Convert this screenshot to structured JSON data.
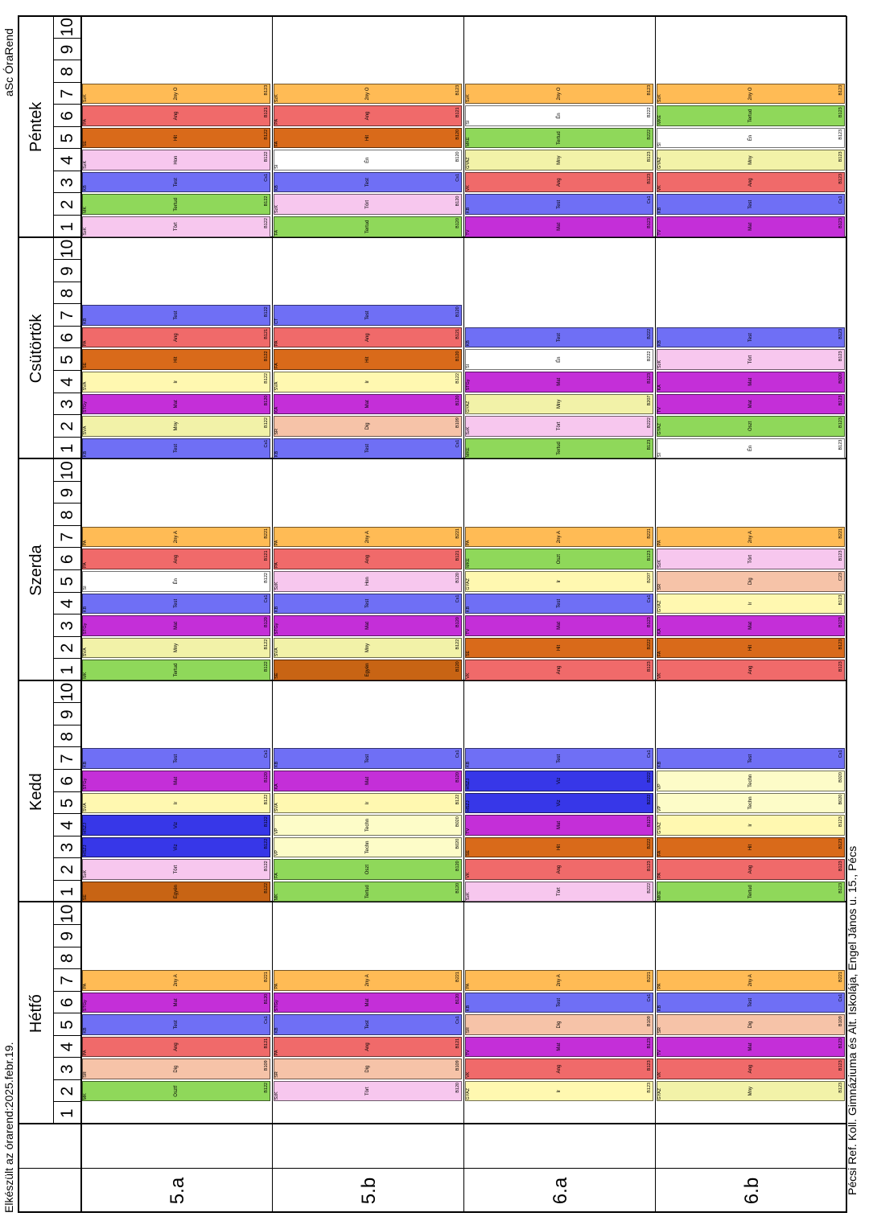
{
  "header": {
    "title": "Pécsi Ref. Koll. Gimnáziuma és Ált. Iskolája, Engel János u. 15., Pécs"
  },
  "footer": {
    "generated": "Elkészült az órarend:2025.febr.19.",
    "brand": "aSc ÓraRend"
  },
  "days": [
    "Hétfő",
    "Kedd",
    "Szerda",
    "Csütörtök",
    "Péntek"
  ],
  "periods": [
    "1",
    "2",
    "3",
    "4",
    "5",
    "6",
    "7",
    "8",
    "9",
    "10"
  ],
  "classes": [
    "5.a",
    "5.b",
    "6.a",
    "6.b"
  ],
  "colors": {
    "Test": "#6f6ff5",
    "Mat": "#c42fd8",
    "Ir": "#fff8b0",
    "Mny": "#f2f2a8",
    "Hit": "#d96a1a",
    "Tört": "#f7c7ee",
    "Tertud": "#8fd85a",
    "Oszt": "#8fd85a",
    "Dig": "#f6c3a8",
    "Egyén": "#c86414",
    "Viz": "#3737e8",
    "Techn": "#fdfcc8",
    "Én": "#ffffff",
    "Hon": "#f7c7ee",
    "Ang": "#f06a6a",
    "Nem": "#45c9f0",
    "2ny": "#ffbb55",
    "Cs": "#8a2020",
    "Dk": "#1414c0",
    "gray": "#cccccc"
  },
  "schedule": {
    "5.a": {
      "Hétfő": [
        null,
        [
          "MK",
          "Osztf",
          "B122"
        ],
        [
          "SR",
          "Dig",
          "B109"
        ],
        [
          "PA",
          "Ang",
          "B121"
        ],
        [
          "KB",
          "Test",
          "Cs1"
        ],
        [
          "STGy",
          "Mat",
          "B120"
        ],
        [
          "PA",
          "2ny A",
          "B221"
        ],
        null,
        null,
        null
      ],
      "Kedd": [
        [
          "SE",
          "Egyén",
          "B122"
        ],
        [
          "SzK",
          "Tört",
          "B122"
        ],
        [
          "HSZJ",
          "Viz",
          "B122"
        ],
        [
          "HSZJ",
          "Viz",
          "B122"
        ],
        [
          "SVÁ",
          "Ir",
          "B122"
        ],
        [
          "STGy",
          "Mat",
          "B120"
        ],
        [
          "KB",
          "Test",
          "Cs1"
        ],
        null,
        null,
        null
      ],
      "Szerda": [
        [
          "MK",
          "Tertud",
          "B122"
        ],
        [
          "SVÁ",
          "Mny",
          "B122"
        ],
        [
          "STGy",
          "Mat",
          "B120"
        ],
        [
          "KB",
          "Test",
          "Cs1"
        ],
        [
          "SI",
          "Én",
          "B122"
        ],
        [
          "PA",
          "Ang",
          "B121"
        ],
        [
          "PA",
          "2ny A",
          "B221"
        ],
        null,
        null,
        null
      ],
      "Csütörtök": [
        [
          "KB",
          "Test",
          "Cs1"
        ],
        [
          "SVÁ",
          "Mny",
          "B122"
        ],
        [
          "STGy",
          "Mat",
          "B120"
        ],
        [
          "SVÁ",
          "Ir",
          "B122"
        ],
        [
          "SE",
          "Hit",
          "B122"
        ],
        [
          "PA",
          "Ang",
          "B121"
        ],
        [
          "KB",
          "Test",
          "B122"
        ],
        null,
        null,
        null
      ],
      "Péntek": [
        [
          "SzK",
          "Tört",
          "B122"
        ],
        [
          "MK",
          "Tertud",
          "B122"
        ],
        [
          "KB",
          "Test",
          "Cs1"
        ],
        [
          "SzK",
          "Hon",
          "B122"
        ],
        [
          "SE",
          "Hit",
          "B122"
        ],
        [
          "PA",
          "Ang",
          "B121"
        ],
        [
          "SzK",
          "2ny O",
          "B123"
        ],
        null,
        null,
        null
      ]
    },
    "5.b": {
      "Hétfő": [
        null,
        [
          "SzK",
          "Tört",
          "B120"
        ],
        [
          "SR",
          "Dig",
          "B109"
        ],
        [
          "PA",
          "Ang",
          "B121"
        ],
        [
          "KB",
          "Test",
          "Cs1"
        ],
        [
          "STGy",
          "Mat",
          "B120"
        ],
        [
          "PA",
          "2ny A",
          "B221"
        ],
        null,
        null,
        null
      ],
      "Kedd": [
        [
          "MK",
          "Tertud",
          "B120"
        ],
        [
          "FA",
          "Oszt",
          "B120"
        ],
        [
          "VP",
          "Techn",
          "B020"
        ],
        [
          "VP",
          "Techn",
          "B020"
        ],
        [
          "SVÁ",
          "Ir",
          "B122"
        ],
        [
          "KA",
          "Mat",
          "B120"
        ],
        [
          "KB",
          "Test",
          "Cs1"
        ],
        null,
        null,
        null
      ],
      "Szerda": [
        [
          "SE",
          "Egyén",
          "B120"
        ],
        [
          "SVÁ",
          "Mny",
          "B122"
        ],
        [
          "STGy",
          "Mat",
          "B120"
        ],
        [
          "KB",
          "Test",
          "Cs1"
        ],
        [
          "SzK",
          "Hon",
          "B120"
        ],
        [
          "PA",
          "Ang",
          "B121"
        ],
        [
          "PA",
          "2ny A",
          "B221"
        ],
        null,
        null,
        null
      ],
      "Csütörtök": [
        [
          "KB",
          "Test",
          "Cs1"
        ],
        [
          "SR",
          "Dig",
          "B109"
        ],
        [
          "KA",
          "Mat",
          "B120"
        ],
        [
          "SVÁ",
          "Ir",
          "B122"
        ],
        [
          "FA",
          "Hit",
          "B120"
        ],
        [
          "PA",
          "Ang",
          "B121"
        ],
        [
          "CT",
          "Test",
          "B120"
        ],
        null,
        null,
        null
      ],
      "Péntek": [
        [
          "FA",
          "Tertud",
          "B120"
        ],
        [
          "SzK",
          "Tört",
          "B120"
        ],
        [
          "KB",
          "Test",
          "Cs1"
        ],
        [
          "SI",
          "Én",
          "B120"
        ],
        [
          "FA",
          "Hit",
          "B120"
        ],
        [
          "PA",
          "Ang",
          "B121"
        ],
        [
          "SzK",
          "2ny O",
          "B123"
        ],
        null,
        null,
        null
      ]
    },
    "6.a": {
      "Hétfő": [
        null,
        [
          "GYAZ",
          "Ir",
          "B123"
        ],
        [
          "VK",
          "Ang",
          "B123"
        ],
        [
          "TV",
          "Mat",
          "B123"
        ],
        [
          "SR",
          "Dig",
          "B109"
        ],
        [
          "KB",
          "Test",
          "Cs1"
        ],
        [
          "PA",
          "2ny A",
          "B221"
        ],
        null,
        null,
        null
      ],
      "Kedd": [
        [
          "SzK",
          "Tört",
          "B222"
        ],
        [
          "VK",
          "Ang",
          "B123"
        ],
        [
          "SE",
          "Hit",
          "B222"
        ],
        [
          "TV",
          "Mat",
          "B123"
        ],
        [
          "HSZJ",
          "Viz",
          "B222"
        ],
        [
          "HSZJ",
          "Viz",
          "B222"
        ],
        [
          "KB",
          "Test",
          "Cs1"
        ],
        null,
        null,
        null
      ],
      "Szerda": [
        [
          "VK",
          "Ang",
          "B123"
        ],
        [
          "SE",
          "Hit",
          "B222"
        ],
        [
          "TV",
          "Mat",
          "B123"
        ],
        [
          "KB",
          "Test",
          "Cs1"
        ],
        [
          "GYAZ",
          "Ir",
          "B207"
        ],
        [
          "MKE",
          "Oszt",
          "B123"
        ],
        [
          "PA",
          "2ny A",
          "B221"
        ],
        null,
        null,
        null
      ],
      "Csütörtök": [
        [
          "MKE",
          "Tertud",
          "B123"
        ],
        [
          "SzK",
          "Tört",
          "B222"
        ],
        [
          "GYAZ",
          "Mny",
          "B207"
        ],
        [
          "STGy",
          "Mat",
          "B123"
        ],
        [
          "SI",
          "Én",
          "B222"
        ],
        [
          "KB",
          "Test",
          "B222"
        ],
        null,
        null,
        null,
        null
      ],
      "Péntek": [
        [
          "TV",
          "Mat",
          "B123"
        ],
        [
          "KB",
          "Test",
          "Cs1"
        ],
        [
          "VK",
          "Ang",
          "B123"
        ],
        [
          "GYAZ",
          "Mny",
          "B123"
        ],
        [
          "MKE",
          "Tertud",
          "B222"
        ],
        [
          "SI",
          "Én",
          "B222"
        ],
        [
          "SzK",
          "2ny O",
          "B123"
        ],
        null,
        null,
        null
      ]
    },
    "6.b": {
      "Hétfő": [
        null,
        [
          "GYAZ",
          "Mny",
          "B123"
        ],
        [
          "VK",
          "Ang",
          "B123"
        ],
        [
          "TV",
          "Mat",
          "B123"
        ],
        [
          "SR",
          "Dig",
          "B109"
        ],
        [
          "KB",
          "Test",
          "Cs1"
        ],
        [
          "PA",
          "2ny A",
          "B221"
        ],
        null,
        null,
        null
      ],
      "Kedd": [
        [
          "MKE",
          "Tertud",
          "B123"
        ],
        [
          "PA",
          "Ang",
          "B123"
        ],
        [
          "FA",
          "Hit",
          "B123"
        ],
        [
          "GYAZ",
          "Ir",
          "B123"
        ],
        [
          "VP",
          "Techn",
          "B020"
        ],
        [
          "VP",
          "Techn",
          "B020"
        ],
        [
          "KB",
          "Test",
          "Cs1"
        ],
        null,
        null,
        null
      ],
      "Szerda": [
        [
          "VK",
          "Ang",
          "B123"
        ],
        [
          "FA",
          "Hit",
          "B123"
        ],
        [
          "KA",
          "Mat",
          "B123"
        ],
        [
          "GYAZ",
          "Ir",
          "B123"
        ],
        [
          "SR",
          "Dig",
          "C23"
        ],
        [
          "SzK",
          "Tört",
          "B123"
        ],
        [
          "PA",
          "2ny A",
          "B221"
        ],
        null,
        null,
        null
      ],
      "Csütörtök": [
        [
          "SI",
          "Én",
          "B123"
        ],
        [
          "GYAZ",
          "Oszt",
          "B123"
        ],
        [
          "TV",
          "Mat",
          "B123"
        ],
        [
          "KA",
          "Mat",
          "B020"
        ],
        [
          "SzK",
          "Tört",
          "B123"
        ],
        [
          "KB",
          "Test",
          "B123"
        ],
        null,
        null,
        null,
        null
      ],
      "Péntek": [
        [
          "TV",
          "Mat",
          "B123"
        ],
        [
          "KB",
          "Test",
          "Cs1"
        ],
        [
          "VK",
          "Ang",
          "B123"
        ],
        [
          "GYAZ",
          "Mny",
          "B123"
        ],
        [
          "SI",
          "Én",
          "B123"
        ],
        [
          "MKE",
          "Tertud",
          "B123"
        ],
        [
          "SzK",
          "2ny O",
          "B123"
        ],
        null,
        null,
        null
      ]
    }
  }
}
